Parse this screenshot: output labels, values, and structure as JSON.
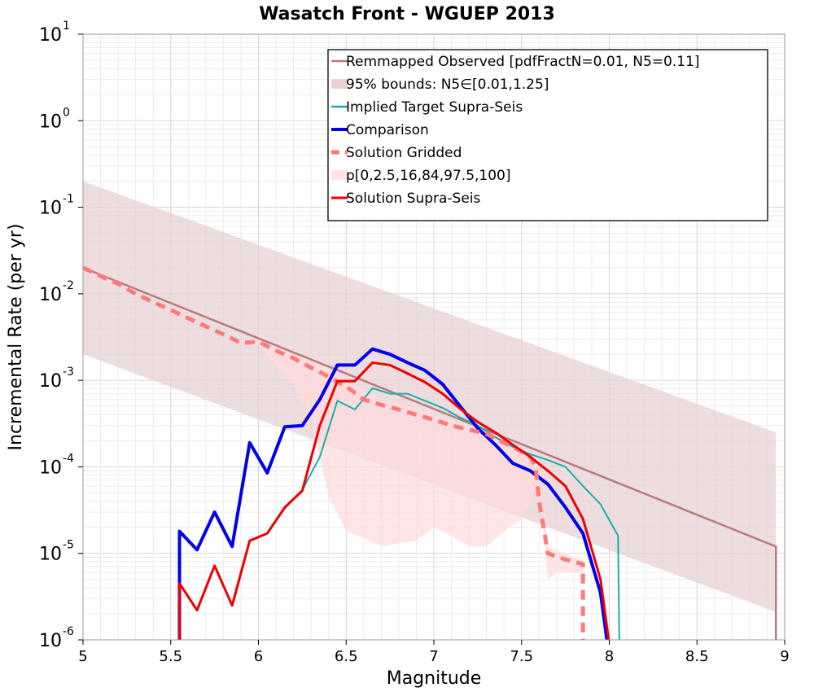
{
  "chart_data": {
    "type": "line",
    "title": "Wasatch Front - WGUEP 2013",
    "xlabel": "Magnitude",
    "ylabel": "Incremental Rate (per yr)",
    "xlim": [
      5,
      9
    ],
    "ylim_log10": [
      -6,
      1
    ],
    "y_scale": "log",
    "grid": true,
    "x_ticks": [
      "5",
      "5.5",
      "6",
      "6.5",
      "7",
      "7.5",
      "8",
      "8.5",
      "9"
    ],
    "y_ticks": [
      {
        "base": "10",
        "exp": "-6"
      },
      {
        "base": "10",
        "exp": "-5"
      },
      {
        "base": "10",
        "exp": "-4"
      },
      {
        "base": "10",
        "exp": "-3"
      },
      {
        "base": "10",
        "exp": "-2"
      },
      {
        "base": "10",
        "exp": "-1"
      },
      {
        "base": "10",
        "exp": "0"
      },
      {
        "base": "10",
        "exp": "1"
      }
    ],
    "legend_position": "top-right",
    "bands": [
      {
        "name": "95% bounds: N5∈[0.01,1.25]",
        "color": "#e8d2d4",
        "opacity": 0.75,
        "x": [
          5.0,
          8.95
        ],
        "upper": [
          0.2,
          0.00025
        ],
        "lower": [
          0.002,
          2.1e-06
        ]
      },
      {
        "name": "p[0,2.5,16,84,97.5,100]",
        "color": "#ffdcdc",
        "opacity": 0.7,
        "x": [
          6.0,
          6.1,
          6.2,
          6.3,
          6.4,
          6.5,
          6.6,
          6.7,
          6.8,
          6.9,
          7.0,
          7.1,
          7.2,
          7.3,
          7.4,
          7.5,
          7.55,
          7.6,
          7.65,
          7.7,
          7.8,
          7.85
        ],
        "upper": [
          0.0035,
          0.0026,
          0.0022,
          0.0019,
          0.0015,
          0.0011,
          0.00075,
          0.0006,
          0.00052,
          0.00047,
          0.0004,
          0.00035,
          0.0003,
          0.00025,
          0.0002,
          0.00016,
          0.00014,
          0.00012,
          1.2e-05,
          1.1e-05,
          9e-06,
          8.5e-06
        ],
        "lower": [
          0.0026,
          0.0015,
          0.0009,
          0.00035,
          4.5e-05,
          1.8e-05,
          1.5e-05,
          1.2e-05,
          1.3e-05,
          1.4e-05,
          2e-05,
          1.6e-05,
          1.2e-05,
          1.2e-05,
          1.8e-05,
          2.5e-05,
          4e-05,
          6.5e-05,
          5e-06,
          6e-06,
          6e-06,
          6e-06
        ]
      }
    ],
    "series": [
      {
        "name": "Remmapped Observed [pdfFractN=0.01, N5=0.11]",
        "color": "#b97b7b",
        "width": 2.5,
        "dash": "",
        "x": [
          5.0,
          8.95,
          8.95
        ],
        "y": [
          0.02,
          1.2e-05,
          1e-07
        ]
      },
      {
        "name": "Implied Target Supra-Seis",
        "color": "#1aadad",
        "width": 2,
        "dash": "",
        "x": [
          5.55,
          5.55,
          5.65,
          5.75,
          5.85,
          5.95,
          6.05,
          6.15,
          6.25,
          6.35,
          6.45,
          6.55,
          6.65,
          6.75,
          6.85,
          6.95,
          7.05,
          7.15,
          7.25,
          7.35,
          7.45,
          7.55,
          7.65,
          7.75,
          7.85,
          7.95,
          8.05,
          8.06
        ],
        "y": [
          1e-07,
          4.5e-06,
          2.2e-06,
          7.2e-06,
          2.5e-06,
          1.4e-05,
          1.7e-05,
          3.3e-05,
          5.4e-05,
          0.00013,
          0.00058,
          0.00046,
          0.00081,
          0.0007,
          0.0007,
          0.00058,
          0.00048,
          0.00037,
          0.0003,
          0.00022,
          0.00017,
          0.00014,
          0.00012,
          0.0001,
          6e-05,
          3.7e-05,
          1.6e-05,
          1e-07
        ]
      },
      {
        "name": "Comparison",
        "color": "#0000ee",
        "width": 4,
        "dash": "",
        "x": [
          5.55,
          5.55,
          5.65,
          5.75,
          5.85,
          5.95,
          6.05,
          6.15,
          6.25,
          6.35,
          6.45,
          6.55,
          6.65,
          6.75,
          6.85,
          6.95,
          7.05,
          7.15,
          7.25,
          7.35,
          7.45,
          7.55,
          7.65,
          7.75,
          7.85,
          7.95,
          8.02
        ],
        "y": [
          1e-07,
          1.8e-05,
          1.1e-05,
          3e-05,
          1.2e-05,
          0.00019,
          8.5e-05,
          0.00029,
          0.0003,
          0.0006,
          0.0015,
          0.0015,
          0.0023,
          0.002,
          0.0016,
          0.0013,
          0.0009,
          0.0005,
          0.00028,
          0.00018,
          0.00011,
          9e-05,
          6.3e-05,
          3.4e-05,
          1.7e-05,
          3.5e-06,
          1e-07
        ]
      },
      {
        "name": "Solution Gridded",
        "color": "#ff7a7a",
        "width": 5,
        "dash": "12,8",
        "x": [
          5.0,
          5.1,
          5.2,
          5.3,
          5.4,
          5.5,
          5.6,
          5.7,
          5.8,
          5.9,
          6.0,
          6.1,
          6.2,
          6.3,
          6.4,
          6.5,
          6.6,
          6.7,
          6.8,
          6.9,
          7.0,
          7.1,
          7.2,
          7.3,
          7.4,
          7.5,
          7.55,
          7.58,
          7.6,
          7.65,
          7.75,
          7.85,
          7.85
        ],
        "y": [
          0.02,
          0.016,
          0.013,
          0.01,
          0.008,
          0.0065,
          0.0052,
          0.0042,
          0.0034,
          0.0027,
          0.0028,
          0.0022,
          0.0018,
          0.0014,
          0.0011,
          0.00085,
          0.0006,
          0.00052,
          0.00046,
          0.0004,
          0.00035,
          0.0003,
          0.00027,
          0.00024,
          0.00019,
          0.00015,
          0.00013,
          0.0001,
          4e-05,
          1e-05,
          8.5e-06,
          7.5e-06,
          1e-07
        ]
      },
      {
        "name": "Solution Supra-Seis",
        "color": "#ee0000",
        "width": 3,
        "dash": "",
        "x": [
          5.55,
          5.55,
          5.65,
          5.75,
          5.85,
          5.95,
          6.05,
          6.15,
          6.25,
          6.35,
          6.45,
          6.55,
          6.65,
          6.75,
          6.85,
          6.95,
          7.05,
          7.15,
          7.25,
          7.35,
          7.45,
          7.55,
          7.65,
          7.75,
          7.85,
          7.95,
          8.03
        ],
        "y": [
          1e-07,
          4.5e-06,
          2.2e-06,
          7.2e-06,
          2.5e-06,
          1.4e-05,
          1.7e-05,
          3.4e-05,
          5.3e-05,
          0.0003,
          0.00098,
          0.00098,
          0.0016,
          0.0015,
          0.0012,
          0.00095,
          0.0007,
          0.00047,
          0.00033,
          0.00025,
          0.00018,
          0.00013,
          9e-05,
          6e-05,
          2.5e-05,
          5e-06,
          1e-07
        ]
      }
    ],
    "legend": [
      {
        "label": "Remmapped Observed [pdfFractN=0.01, N5=0.11]",
        "kind": "line",
        "color": "#b97b7b",
        "width": 2.5,
        "dash": ""
      },
      {
        "label": "95% bounds: N5∈[0.01,1.25]",
        "kind": "patch",
        "color": "#e8d2d4"
      },
      {
        "label": "Implied Target Supra-Seis",
        "kind": "line",
        "color": "#1aadad",
        "width": 2.5,
        "dash": ""
      },
      {
        "label": "Comparison",
        "kind": "line",
        "color": "#0000ee",
        "width": 4,
        "dash": ""
      },
      {
        "label": "Solution Gridded",
        "kind": "line",
        "color": "#ff7a7a",
        "width": 5,
        "dash": "10,7"
      },
      {
        "label": "p[0,2.5,16,84,97.5,100]",
        "kind": "patch",
        "color": "#ffe4e4"
      },
      {
        "label": "Solution Supra-Seis",
        "kind": "line",
        "color": "#ee0000",
        "width": 3,
        "dash": ""
      }
    ]
  }
}
